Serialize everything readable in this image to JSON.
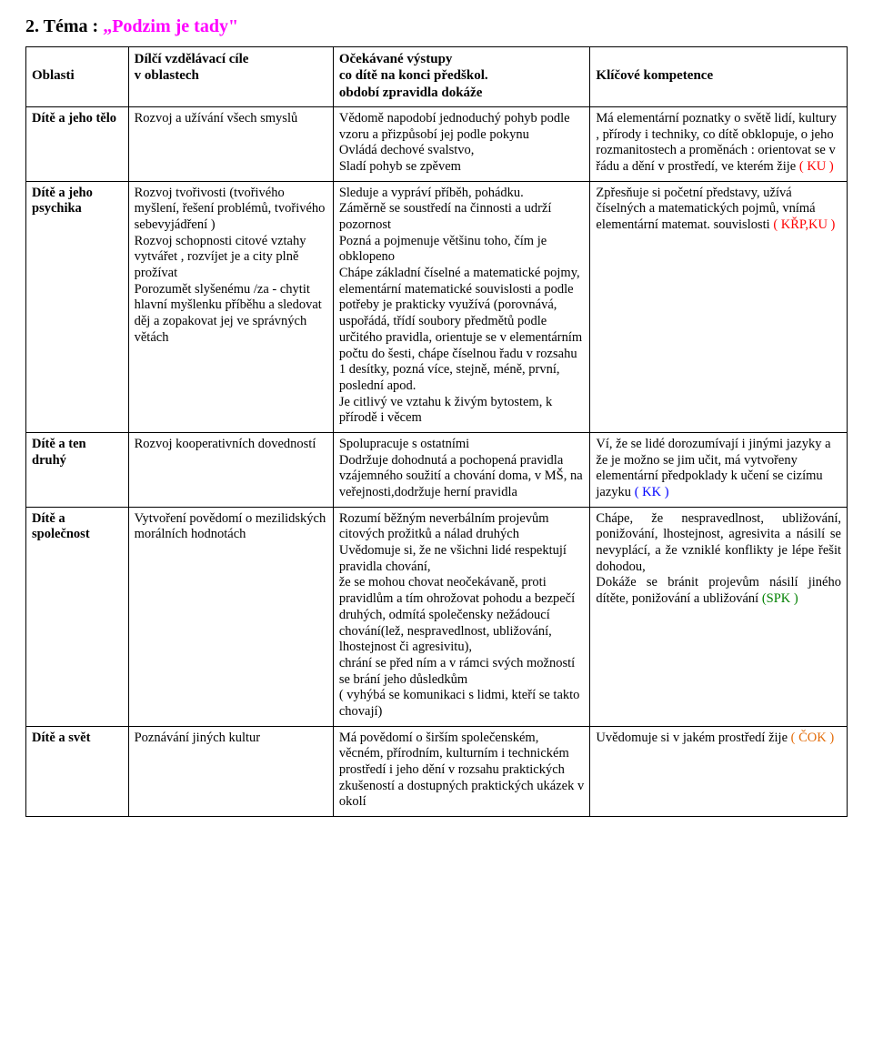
{
  "title": {
    "prefix": "2. Téma :",
    "name": "„Podzim je tady\""
  },
  "headers": {
    "col1": "Oblasti",
    "col2_line1": "Dílčí vzdělávací cíle",
    "col2_line2": "  v oblastech",
    "col3_line1": "Očekávané výstupy",
    "col3_line2": "co dítě na konci předškol.",
    "col3_line3": "období zpravidla  dokáže",
    "col4": "Klíčové kompetence"
  },
  "rows": [
    {
      "label": "Dítě a jeho tělo",
      "col2": "Rozvoj a užívání všech smyslů",
      "col3": "Vědomě napodobí  jednoduchý pohyb podle vzoru a přizpůsobí jej podle pokynu\nOvládá dechové svalstvo,\nSladí pohyb se zpěvem",
      "col4_pre": "Má elementární poznatky o světě lidí, kultury , přírody i techniky, co dítě obklopuje, o jeho rozmanitostech a proměnách : orientovat se v řádu a dění v prostředí, ve kterém žije ",
      "col4_accent": "( KU )",
      "col4_accent_color": "accent-red"
    },
    {
      "label": "Dítě a jeho psychika",
      "col2": "Rozvoj tvořivosti (tvořivého myšlení, řešení problémů, tvořivého sebevyjádření )\n Rozvoj schopnosti citové vztahy vytvářet , rozvíjet je a city plně prožívat\nPorozumět slyšenému /za - chytit  hlavní myšlenku příběhu a sledovat děj a zopakovat jej ve správných  větách",
      "col3": "Sleduje a vypráví příběh, pohádku.\nZáměrně se soustředí na činnosti a udrží pozornost\nPozná a pojmenuje většinu toho, čím je obklopeno\nChápe základní číselné a matematické pojmy, elementární matematické souvislosti a podle potřeby je prakticky využívá (porovnává, uspořádá, třídí soubory předmětů podle určitého pravidla, orientuje se v elementárním počtu do šesti, chápe číselnou řadu v rozsahu 1 desítky, pozná více, stejně, méně, první, poslední apod.\nJe citlivý ve vztahu k živým bytostem, k přírodě i věcem",
      "col4_pre": "Zpřesňuje si  početní představy, užívá číselných a matematických pojmů, vnímá elementární matemat. souvislosti  ",
      "col4_accent": "( KŘP,KU )",
      "col4_accent_color": "accent-red"
    },
    {
      "label": "Dítě a ten druhý",
      "col2": "Rozvoj kooperativních dovedností",
      "col3": "Spolupracuje s ostatními\nDodržuje dohodnutá a pochopená pravidla vzájemného soužití a chování doma, v MŠ, na veřejnosti,dodržuje herní pravidla",
      "col4_pre": "Ví, že se lidé dorozumívají i jinými jazyky a že je možno se jim učit, má vytvořeny  elementární předpoklady k učení se cizímu jazyku ",
      "col4_accent": "( KK )",
      "col4_accent_color": "accent-blue"
    },
    {
      "label": "Dítě a společnost",
      "col2": "Vytvoření povědomí o mezilidských morálních hodnotách",
      "col3": "Rozumí běžným neverbálním projevům citových prožitků a nálad druhých\nUvědomuje si, že ne všichni lidé respektují pravidla chování,\nže se mohou chovat neočekávaně, proti pravidlům a tím  ohrožovat pohodu a bezpečí druhých, odmítá společensky nežádoucí chování(lež, nespravedlnost, ubližování, lhostejnost či agresivitu),\nchrání se před ním a v rámci svých možností se brání jeho důsledkům\n( vyhýbá se komunikaci s lidmi, kteří se takto chovají)",
      "col4_justify": true,
      "col4_pre": "Chápe, že nespravedlnost, ubližování, ponižování, lhostejnost, agresivita a násilí se nevyplácí, a že vzniklé konflikty je lépe řešit dohodou,\nDokáže se bránit projevům násilí jiného dítěte, ponižování a ubližování ",
      "col4_accent": "(SPK )",
      "col4_accent_color": "accent-green"
    },
    {
      "label": "Dítě a svět",
      "col2": "Poznávání jiných kultur",
      "col3": "Má povědomí o širším společenském, věcném, přírodním, kulturním i technickém prostředí i jeho dění v rozsahu praktických zkušeností a dostupných praktických ukázek v okolí",
      "col4_pre": "Uvědomuje si v jakém prostředí žije ",
      "col4_accent": "( ČOK )",
      "col4_accent_color": "accent-orange"
    }
  ]
}
